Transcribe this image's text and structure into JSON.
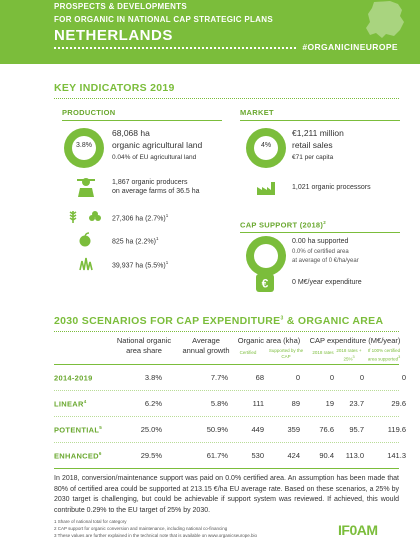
{
  "header": {
    "line1": "PROSPECTS & DEVELOPMENTS",
    "line2": "FOR ORGANIC IN NATIONAL CAP STRATEGIC PLANS",
    "country": "NETHERLANDS",
    "hashtag": "#ORGANICINEUROPE",
    "accent": "#7bbd3b"
  },
  "key_indicators": {
    "title": "KEY INDICATORS 2019",
    "production": {
      "title": "PRODUCTION",
      "share_pct": "3.8%",
      "area": "68,068 ha",
      "area_label": "organic agricultural land",
      "eu_share": "0.04% of EU agricultural land",
      "producers_line1": "1,867 organic producers",
      "producers_line2": "on average farms of 36.5 ha",
      "crop1": "27,306 ha (2.7%)",
      "crop1_fn": "1",
      "crop2": "825 ha (2.2%)",
      "crop2_fn": "1",
      "crop3": "39,937 ha (5.5%)",
      "crop3_fn": "1"
    },
    "market": {
      "title": "MARKET",
      "share_pct": "4%",
      "sales": "€1,211 million",
      "sales_label": "retail sales",
      "per_capita": "€71 per capita",
      "processors": "1,021 organic processors"
    },
    "cap_support": {
      "title": "CAP SUPPORT (2018)",
      "title_fn": "2",
      "supported": "0.00 ha supported",
      "share": "0.0% of certified area",
      "average": "at average of 0 €/ha/year",
      "expenditure": "0 M€/year expenditure"
    }
  },
  "scenarios": {
    "title_part1": "2030 SCENARIOS FOR CAP EXPENDITURE",
    "title_fn": "3",
    "title_part2": " & ORGANIC AREA",
    "col_share": "National organic area share",
    "col_growth": "Average annual growth",
    "col_area": "Organic area (kha)",
    "col_area_sub1": "Certified",
    "col_area_sub2": "Supported by the CAP",
    "col_cap": "CAP expenditure (M€/year)",
    "col_cap_sub1": "2018 rates",
    "col_cap_sub2": "2018 rates + 25%",
    "col_cap_sub2_fn": "3",
    "col_cap_sub3": "If 100% certified area supported",
    "col_cap_sub3_fn": "3",
    "rows": [
      {
        "label": "2014-2019",
        "fn": "",
        "share": "3.8%",
        "growth": "7.7%",
        "certified": "68",
        "supported": "0",
        "r2018": "0",
        "r25": "0",
        "r100": "0"
      },
      {
        "label": "LINEAR",
        "fn": "4",
        "share": "6.2%",
        "growth": "5.8%",
        "certified": "111",
        "supported": "89",
        "r2018": "19",
        "r25": "23.7",
        "r100": "29.6"
      },
      {
        "label": "POTENTIAL",
        "fn": "5",
        "share": "25.0%",
        "growth": "50.9%",
        "certified": "449",
        "supported": "359",
        "r2018": "76.6",
        "r25": "95.7",
        "r100": "119.6"
      },
      {
        "label": "ENHANCED",
        "fn": "6",
        "share": "29.5%",
        "growth": "61.7%",
        "certified": "530",
        "supported": "424",
        "r2018": "90.4",
        "r25": "113.0",
        "r100": "141.3"
      }
    ]
  },
  "note": "In 2018, conversion/maintenance support was paid on 0.0% certified area. An assumption has been made that 80% of certified area could be supported at 213.15 €/ha EU average rate. Based on these scenarios, a 25% by 2030 target is challenging, but could be achievable if support system was reviewed. If achieved, this would contribute 0.29% to the EU target of 25% by 2030.",
  "footnotes": [
    "1 Share of national total for category",
    "2 CAP support for organic conversion and maintenance, including national co-financing",
    "3 These values are further explained in the technical note that is available on www.organicseurope.bio"
  ],
  "logo": "IF0AM"
}
